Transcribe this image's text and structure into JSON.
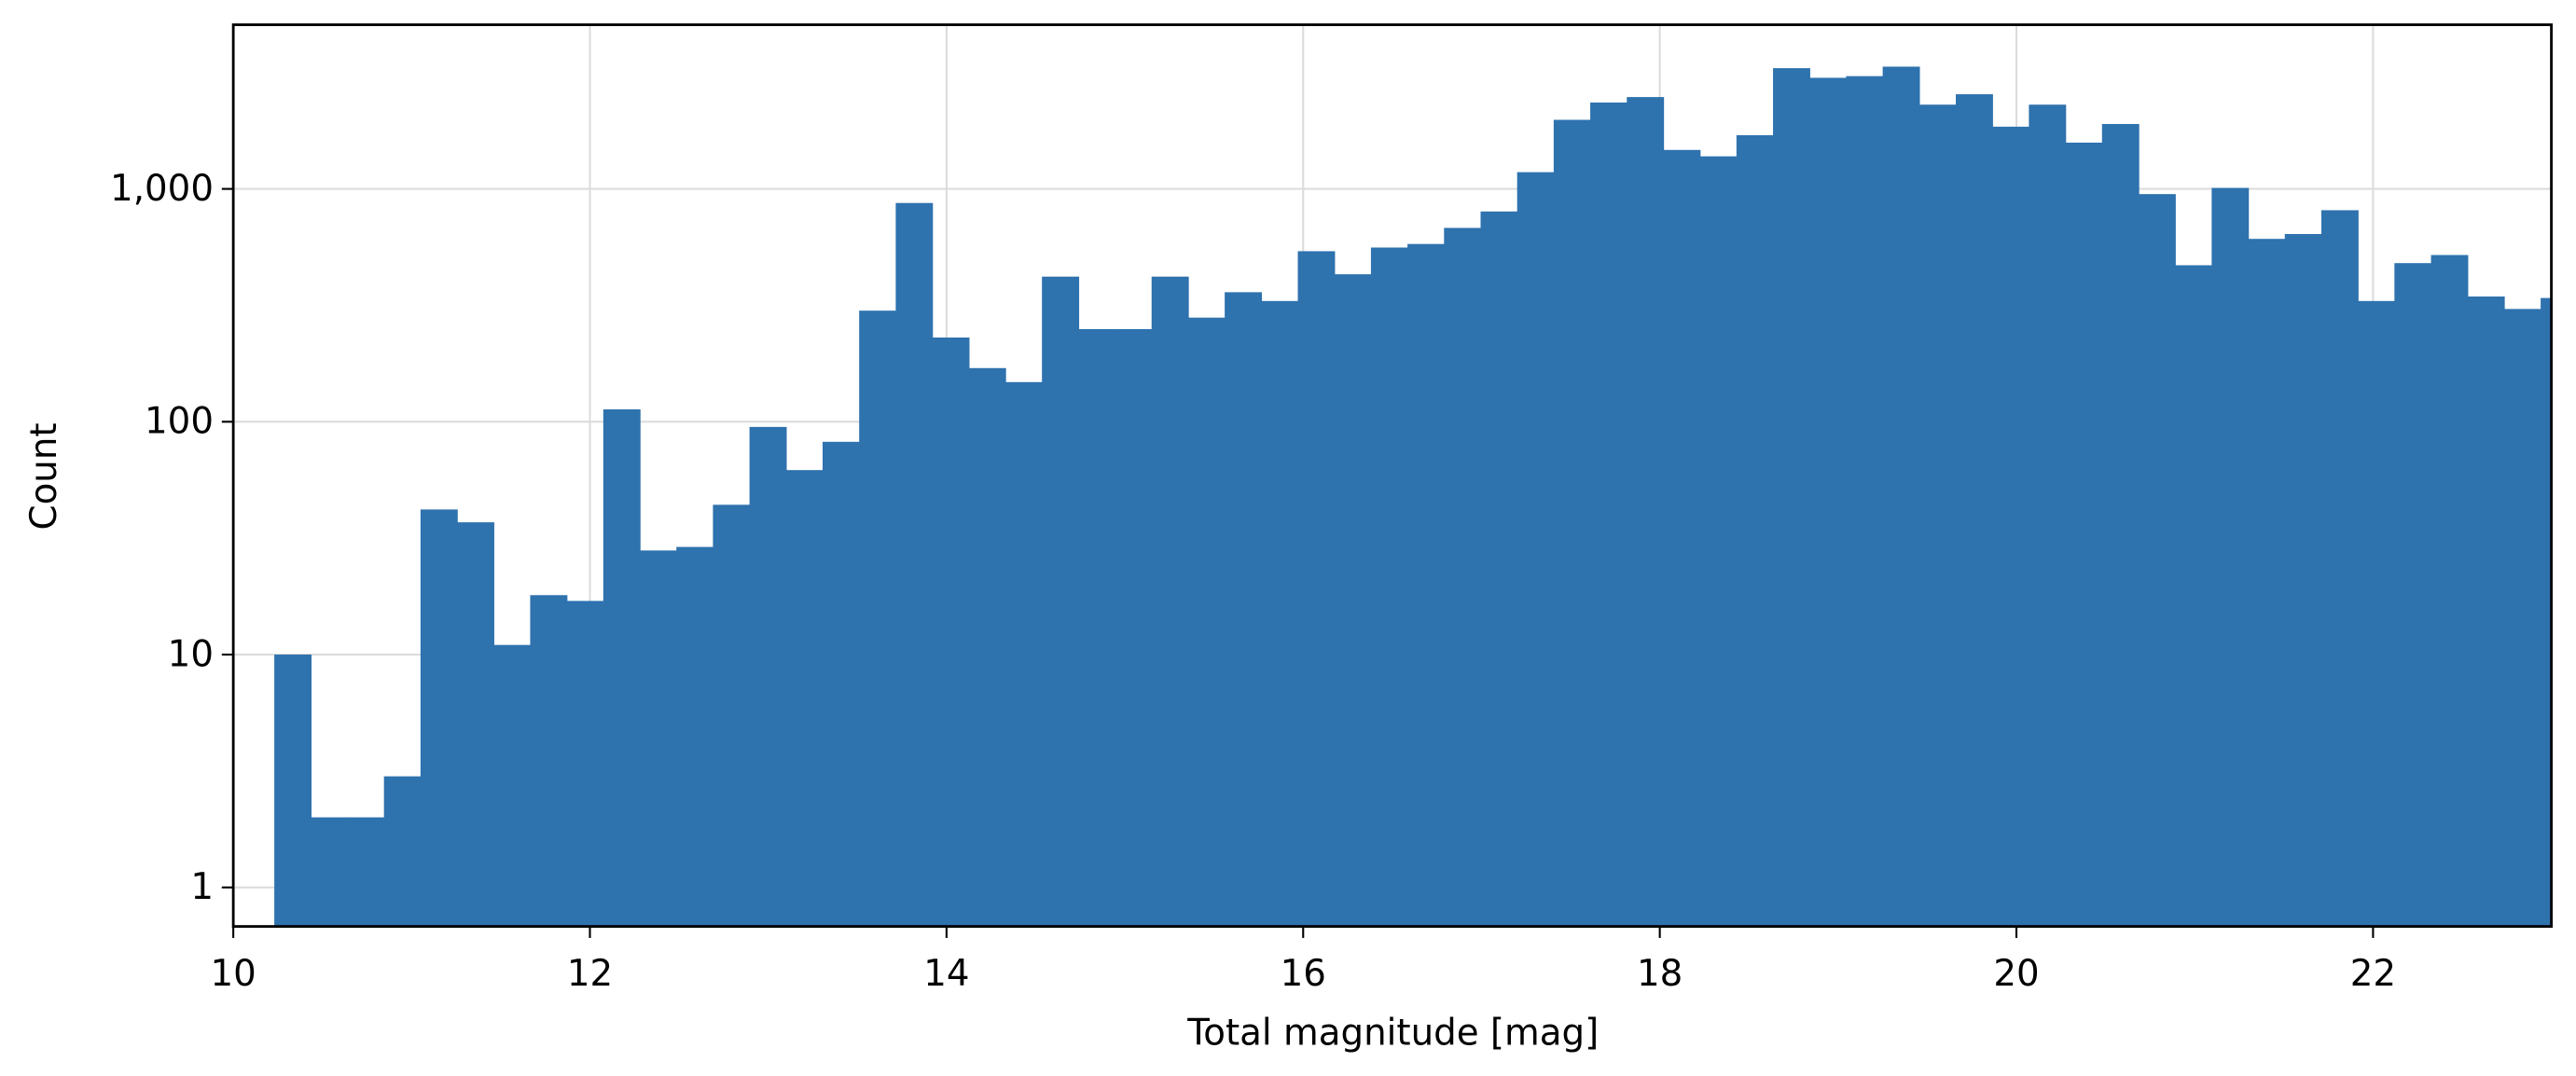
{
  "chart_data": {
    "type": "histogram",
    "xlabel": "Total magnitude [mag]",
    "ylabel": "Count",
    "bins": [
      10.23,
      10.435,
      10.64,
      10.845,
      11.05,
      11.255,
      11.46,
      11.665,
      11.87,
      12.075,
      12.28,
      12.485,
      12.69,
      12.895,
      13.1,
      13.305,
      13.51,
      13.715,
      13.92,
      14.125,
      14.33,
      14.535,
      14.74,
      14.945,
      15.15,
      15.355,
      15.56,
      15.765,
      15.97,
      16.175,
      16.38,
      16.585,
      16.79,
      16.995,
      17.2,
      17.405,
      17.61,
      17.815,
      18.02,
      18.225,
      18.43,
      18.635,
      18.84,
      19.045,
      19.25,
      19.455,
      19.66,
      19.865,
      20.07,
      20.275,
      20.48,
      20.685,
      20.89,
      21.095,
      21.3,
      21.505,
      21.71,
      21.915,
      22.12,
      22.325,
      22.53,
      22.735,
      22.94,
      23.145
    ],
    "counts": [
      10,
      2,
      2,
      3,
      42,
      37,
      11,
      18,
      17,
      113,
      28,
      29,
      44,
      95,
      62,
      82,
      300,
      870,
      230,
      170,
      148,
      420,
      250,
      250,
      420,
      280,
      360,
      330,
      540,
      430,
      560,
      580,
      680,
      800,
      1180,
      1980,
      2350,
      2480,
      1470,
      1380,
      1700,
      3300,
      3000,
      3050,
      3350,
      2300,
      2550,
      1850,
      2300,
      1580,
      1900,
      950,
      470,
      1010,
      610,
      640,
      810,
      330,
      480,
      520,
      345,
      305,
      340
    ],
    "color": "#2e72ae",
    "xlim": [
      10,
      23
    ],
    "xticks": [
      10,
      12,
      14,
      16,
      18,
      20,
      22
    ],
    "ylim": [
      0.68,
      5070
    ],
    "ylog": true,
    "yticks": [
      1,
      10,
      100,
      {
        "value": 1000,
        "label": "1,000"
      }
    ],
    "grid": true
  }
}
